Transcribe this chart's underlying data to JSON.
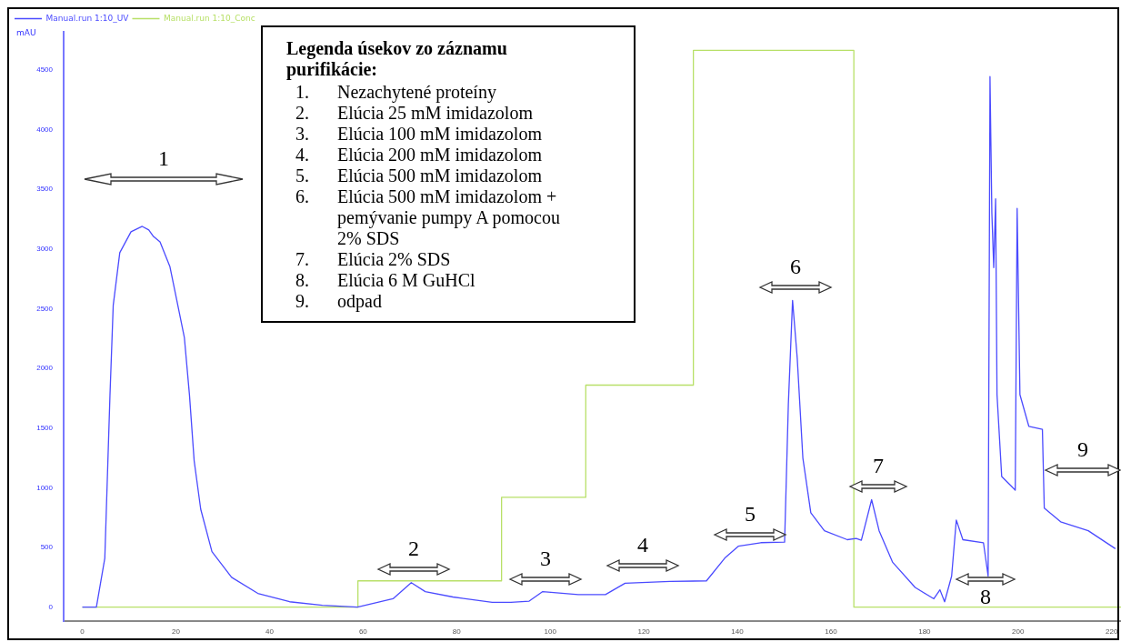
{
  "chart_data": {
    "type": "line",
    "ylabel": "mAU",
    "legend": "top left",
    "grid": false,
    "marker": "none",
    "line_style": "solid",
    "xlim": [
      -4,
      222
    ],
    "xticks": [
      0,
      20,
      40,
      60,
      80,
      100,
      120,
      140,
      160,
      180,
      200,
      220
    ],
    "ylim": [
      -120,
      4820
    ],
    "yticks": [
      0,
      500,
      1000,
      1500,
      2000,
      2500,
      3000,
      3500,
      4000,
      4500
    ],
    "legend_title": "Legenda úsekov zo záznamu purifikácie:",
    "series": [
      {
        "name": "Manual.run 1:10_UV",
        "color": "#4b4bff",
        "x": [
          0,
          3,
          4.8,
          5.9,
          6.6,
          8,
          10.4,
          12.8,
          14.2,
          15.2,
          16.6,
          18.7,
          20.4,
          21.8,
          22.9,
          23.9,
          25.3,
          27.7,
          31.9,
          37.5,
          44.3,
          51.3,
          58.8,
          66.4,
          70.3,
          73.3,
          79.2,
          87.6,
          91.6,
          95.5,
          98.4,
          106,
          111.8,
          116,
          125.6,
          133.4,
          137.3,
          140.2,
          145,
          150.1,
          150.9,
          151.8,
          152.8,
          154,
          155.7,
          158.6,
          163.5,
          165.4,
          166.5,
          168.7,
          170.3,
          173.2,
          178,
          182,
          183.3,
          184.3,
          185.8,
          186.8,
          188.2,
          192.6,
          193.6,
          194,
          194.4,
          194.8,
          195.2,
          195.5,
          196.5,
          198.4,
          199.4,
          199.8,
          200.4,
          202.3,
          205.2,
          205.6,
          209.1,
          215,
          220.8
        ],
        "values": [
          0,
          0,
          410,
          1770,
          2530,
          2970,
          3145,
          3190,
          3160,
          3105,
          3060,
          2855,
          2530,
          2260,
          1775,
          1225,
          820,
          465,
          250,
          115,
          45,
          15,
          0,
          70,
          205,
          130,
          85,
          40,
          40,
          50,
          130,
          105,
          105,
          200,
          215,
          220,
          410,
          510,
          540,
          545,
          1700,
          2570,
          2085,
          1250,
          790,
          640,
          565,
          575,
          560,
          900,
          640,
          375,
          165,
          70,
          145,
          45,
          260,
          730,
          565,
          540,
          260,
          4445,
          3300,
          2845,
          3420,
          1780,
          1095,
          1020,
          980,
          3340,
          1780,
          1515,
          1490,
          830,
          715,
          640,
          490
        ]
      },
      {
        "name": "Manual.run 1:10_Conc",
        "color": "#b8e068",
        "x": [
          0,
          58.9,
          58.9,
          89.6,
          89.6,
          107.6,
          107.6,
          130.6,
          130.6,
          164.9,
          164.9,
          222
        ],
        "values": [
          0,
          0,
          220,
          220,
          920,
          920,
          1860,
          1860,
          4665,
          4665,
          0,
          0
        ]
      }
    ],
    "annotations": [
      "1",
      "2",
      "3",
      "4",
      "5",
      "6",
      "7",
      "8",
      "9",
      "1. Nezachytené proteíny",
      "2. Elúcia 25 mM imidazolom",
      "3. Elúcia 100 mM imidazolom",
      "4. Elúcia 200 mM imidazolom",
      "5. Elúcia 500 mM imidazolom",
      "6. Elúcia 500 mM imidazolom + pemývanie pumpy A pomocou 2% SDS",
      "7. Elúcia 2% SDS",
      "8. Elúcia 6 M GuHCl",
      "9. odpad"
    ]
  }
}
